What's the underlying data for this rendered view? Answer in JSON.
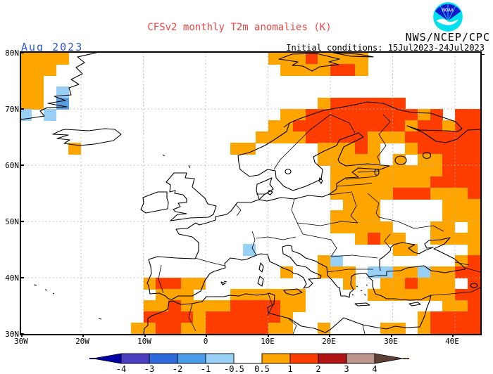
{
  "header": {
    "title": "CFSv2 monthly T2m anomalies (K)",
    "agency": "NWS/NCEP/CPC",
    "month_label": "Aug 2023",
    "initial_conditions": "Initial conditions: 15Jul2023-24Jul2023"
  },
  "colors": {
    "title_red": "#f24343",
    "month_blue": "#2e56d6",
    "grid_dots": "#b4b4b4",
    "coast_black": "#000000"
  },
  "map": {
    "lat_labels": [
      "80N",
      "70N",
      "60N",
      "50N",
      "40N",
      "30N"
    ],
    "lon_labels": [
      "30W",
      "20W",
      "10W",
      "0",
      "10E",
      "20E",
      "30E",
      "40E"
    ]
  },
  "colorbar": {
    "levels": [
      "-4",
      "-3",
      "-2",
      "-1",
      "-0.5",
      "0.5",
      "1",
      "2",
      "3",
      "4"
    ],
    "segment_colors": [
      "#4b3ec0",
      "#2e6adb",
      "#4a9ce8",
      "#98cff5",
      "#ffffff",
      "#ffa500",
      "#ff3d00",
      "#b01414",
      "#bc968c"
    ],
    "left_arrow_color": "#0000a8",
    "right_arrow_color": "#5e4037"
  },
  "chart_data": {
    "type": "heatmap",
    "title": "CFSv2 monthly T2m anomalies (K)",
    "units": "K",
    "forecast_month": "Aug 2023",
    "initial_conditions": "15Jul2023-24Jul2023",
    "region": {
      "lon_min": -30,
      "lon_max": 46,
      "lat_min": 30,
      "lat_max": 80
    },
    "cell_size_deg": 2,
    "legend_levels": [
      -4,
      -3,
      -2,
      -1,
      -0.5,
      0.5,
      1,
      2,
      3,
      4
    ],
    "palette": {
      ".": null,
      "o": "#ffa500",
      "r": "#ff3d00",
      "R": "#b01414",
      "b": "#98cff5",
      "B": "#5b9fe0"
    },
    "palette_meaning": {
      ".": "-0.5 to 0.5 (white)",
      "o": "0.5 to 1 (orange)",
      "r": "1 to 2 (red)",
      "R": "2 to 3 (dark red)",
      "b": "-1 to -0.5 (light blue)",
      "B": "-2 to -1 (blue)"
    },
    "grid_note": "rows from 80N to 30N in 2-deg bands, 38 cols from 30W to 46E",
    "grid_rows_lat_desc": [
      "oooo................oooroooo..........",
      "ooo..................oooorro..........",
      "oo....................................",
      "oo.b..................................",
      "oo.B....................orrrrrr.......",
      "b.b..................oorrrrrrrrror.rrr",
      "....................oorrrrrrrrrorrorrr",
      "...................oooorrrrrooorrrrrrr",
      "....o............oo.....oooro..orrrrrr",
      "........................ooooo.o.oorrrr",
      ".........................ooooooooorrrr",
      ".........................oooooooorrrrr",
      ".........................ooooorrrooorr",
      "..........................ooo.....oooo",
      ".........................oooo.....oooo",
      ".........................ooooo...oo.oo",
      "...........................oroo..ooooo",
      "..................b...........oo....oo",
      "........................ob.........orr",
      ".....................o..ooo.bbooboorrr",
      "..........orroo...........o..oorooo.rr",
      "...........ooo...oooooo.....ooooooorrr",
      "..........ooroooorrrroo...........oorr",
      "..........rrrrorrrrrro..........orrrrr",
      ".........oorroorrrrroo..o....oo.orrrrr"
    ]
  }
}
